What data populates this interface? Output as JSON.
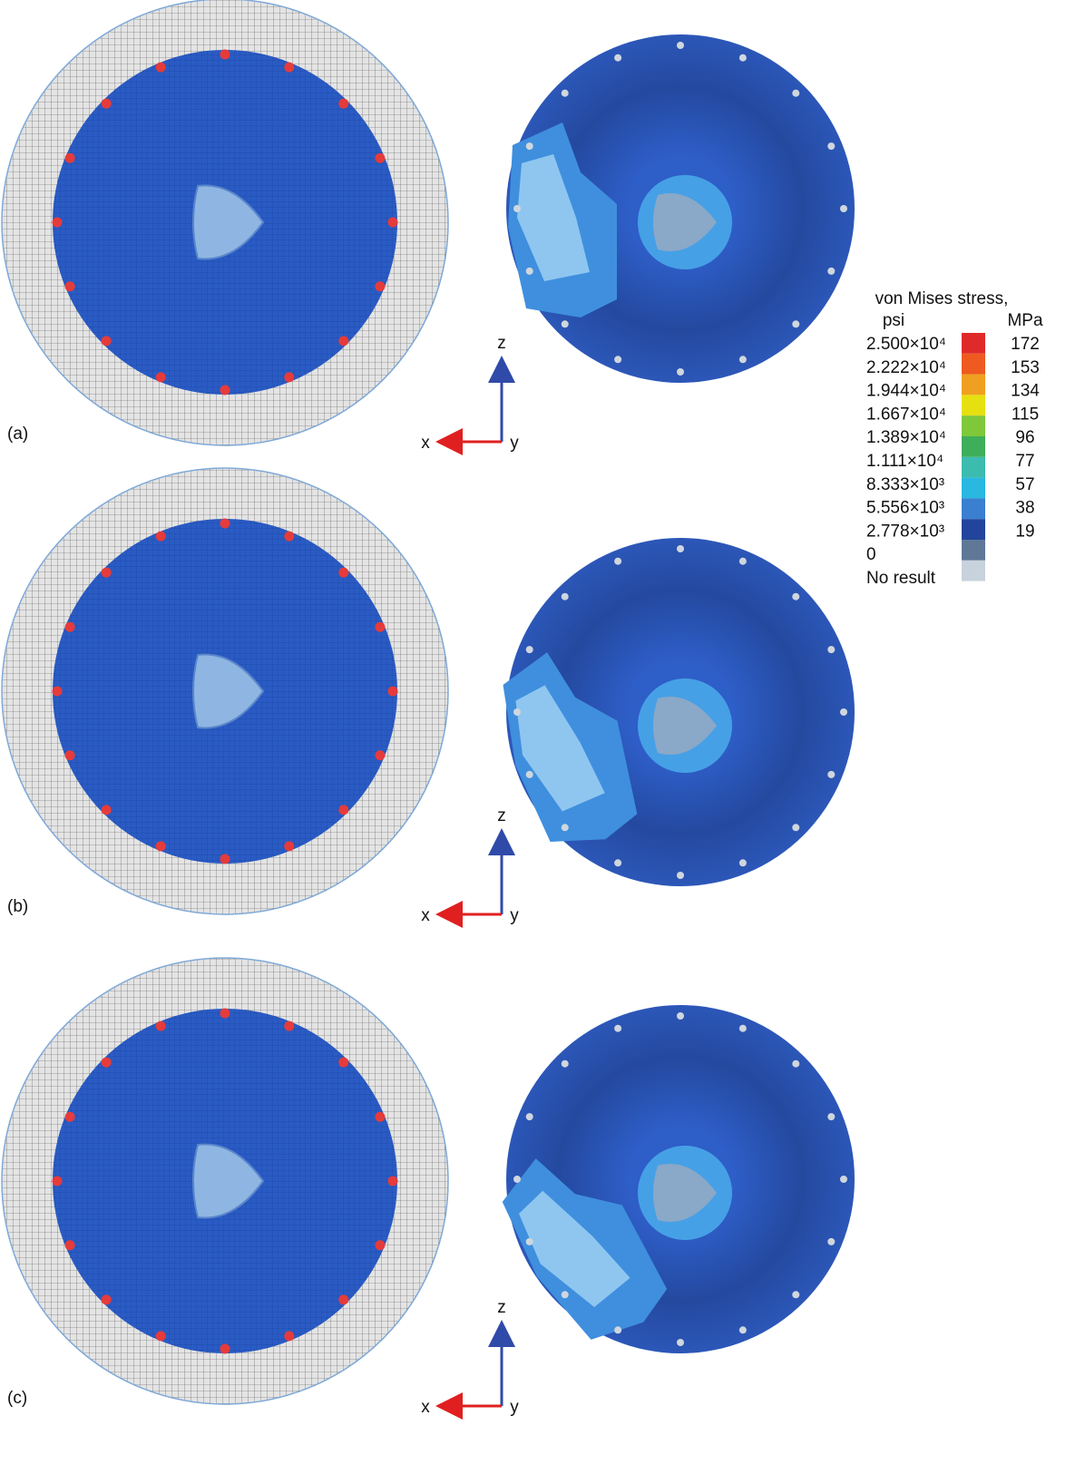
{
  "panels": [
    {
      "label": "(a)",
      "axes": {
        "z": "z",
        "x": "x",
        "y": "y"
      }
    },
    {
      "label": "(b)",
      "axes": {
        "z": "z",
        "x": "x",
        "y": "y"
      }
    },
    {
      "label": "(c)",
      "axes": {
        "z": "z",
        "x": "x",
        "y": "y"
      }
    }
  ],
  "legend": {
    "title": "von Mises stress,",
    "unit_left": "psi",
    "unit_right": "MPa",
    "entries": [
      {
        "psi": "2.500×10⁴",
        "mpa": 172
      },
      {
        "psi": "2.222×10⁴",
        "mpa": 153
      },
      {
        "psi": "1.944×10⁴",
        "mpa": 134
      },
      {
        "psi": "1.667×10⁴",
        "mpa": 115
      },
      {
        "psi": "1.389×10⁴",
        "mpa": 96
      },
      {
        "psi": "1.111×10⁴",
        "mpa": 77
      },
      {
        "psi": "8.333×10³",
        "mpa": 57
      },
      {
        "psi": "5.556×10³",
        "mpa": 38
      },
      {
        "psi": "2.778×10³",
        "mpa": 19
      },
      {
        "psi": "0"
      },
      {
        "psi": "No result"
      }
    ]
  }
}
